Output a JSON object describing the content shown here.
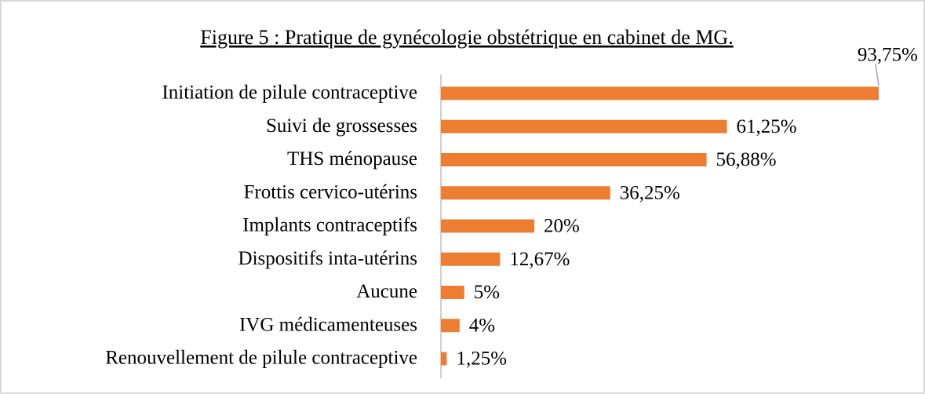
{
  "chart_data": {
    "type": "bar",
    "orientation": "horizontal",
    "title": "Figure 5 : Pratique de gynécologie obstétrique en cabinet de MG.",
    "categories": [
      "Initiation de pilule contraceptive",
      "Suivi de grossesses",
      "THS ménopause",
      "Frottis cervico-utérins",
      "Implants contraceptifs",
      "Dispositifs inta-utérins",
      "Aucune",
      "IVG médicamenteuses",
      "Renouvellement de pilule contraceptive"
    ],
    "values": [
      93.75,
      61.25,
      56.88,
      36.25,
      20,
      12.67,
      5,
      4,
      1.25
    ],
    "value_labels": [
      "93,75%",
      "61,25%",
      "56,88%",
      "36,25%",
      "20%",
      "12,67%",
      "5%",
      "4%",
      "1,25%"
    ],
    "color": "#ED7D31"
  }
}
